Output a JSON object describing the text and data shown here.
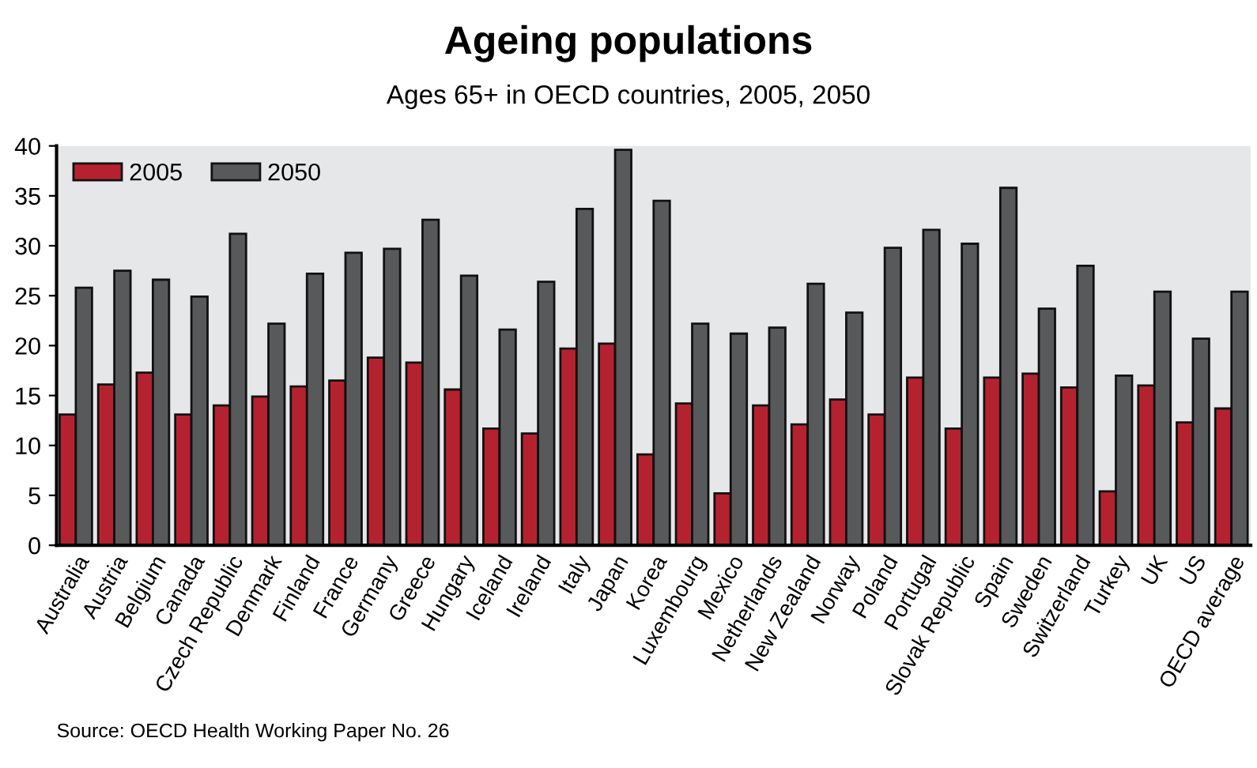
{
  "chart_data": {
    "type": "bar",
    "title": "Ageing populations",
    "subtitle": "Ages 65+ in OECD countries, 2005, 2050",
    "categories": [
      "Australia",
      "Austria",
      "Belgium",
      "Canada",
      "Czech Republic",
      "Denmark",
      "Finland",
      "France",
      "Germany",
      "Greece",
      "Hungary",
      "Iceland",
      "Ireland",
      "Italy",
      "Japan",
      "Korea",
      "Luxembourg",
      "Mexico",
      "Netherlands",
      "New Zealand",
      "Norway",
      "Poland",
      "Portugal",
      "Slovak Republic",
      "Spain",
      "Sweden",
      "Switzerland",
      "Turkey",
      "UK",
      "US",
      "OECD average"
    ],
    "series": [
      {
        "name": "2005",
        "color": "#b5222f",
        "values": [
          13.1,
          16.1,
          17.3,
          13.1,
          14.0,
          14.9,
          15.9,
          16.5,
          18.8,
          18.3,
          15.6,
          11.7,
          11.2,
          19.7,
          20.2,
          9.1,
          14.2,
          5.2,
          14.0,
          12.1,
          14.6,
          13.1,
          16.8,
          11.7,
          16.8,
          17.2,
          15.8,
          5.4,
          16.0,
          12.3,
          13.7
        ]
      },
      {
        "name": "2050",
        "color": "#58595b",
        "values": [
          25.8,
          27.5,
          26.6,
          24.9,
          31.2,
          22.2,
          27.2,
          29.3,
          29.7,
          32.6,
          27.0,
          21.6,
          26.4,
          33.7,
          39.6,
          34.5,
          22.2,
          21.2,
          21.8,
          26.2,
          23.3,
          29.8,
          31.6,
          30.2,
          35.8,
          23.7,
          28.0,
          17.0,
          25.4,
          20.7,
          25.4
        ]
      }
    ],
    "ylim": [
      0,
      40
    ],
    "yticks": [
      0,
      5,
      10,
      15,
      20,
      25,
      30,
      35,
      40
    ],
    "grid": false,
    "legend": "top left",
    "annotations": [
      "Source: OECD Health Working Paper No. 26"
    ]
  }
}
